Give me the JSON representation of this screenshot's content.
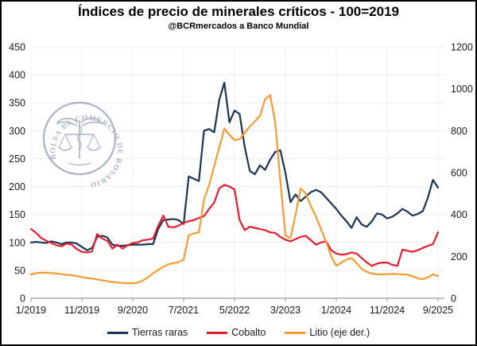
{
  "title": "Índices de precio de minerales críticos - 100=2019",
  "subtitle": "@BCRmercados a Banco Mundial",
  "watermark": {
    "text": "BOLSA DE COMERCIO DE ROSARIO",
    "color": "#94a0b8"
  },
  "chart_data": {
    "type": "line",
    "title": "Índices de precio de minerales críticos - 100=2019",
    "subtitle": "@BCRmercados a Banco Mundial",
    "x_unit": "month",
    "x_range": [
      "1/2019",
      "9/2025"
    ],
    "x_tick_labels": [
      "1/2019",
      "11/2019",
      "9/2020",
      "7/2021",
      "5/2022",
      "3/2023",
      "1/2024",
      "11/2024",
      "9/2025"
    ],
    "x_tick_month_index": [
      0,
      10,
      20,
      30,
      40,
      50,
      60,
      70,
      80
    ],
    "left_axis": {
      "min": 0,
      "max": 450,
      "step": 50,
      "tick_labels": [
        "0",
        "50",
        "100",
        "150",
        "200",
        "250",
        "300",
        "350",
        "400",
        "450"
      ]
    },
    "right_axis": {
      "min": 0,
      "max": 1200,
      "step": 200,
      "tick_labels": [
        "0",
        "200",
        "400",
        "600",
        "800",
        "1000",
        "1200"
      ]
    },
    "grid": true,
    "legend_position": "bottom",
    "series": [
      {
        "name": "Tierras raras",
        "axis": "left",
        "color": "#1b3357",
        "values": [
          100,
          101,
          100,
          99,
          102,
          100,
          97,
          100,
          100,
          98,
          92,
          86,
          90,
          110,
          112,
          109,
          96,
          94,
          94,
          95,
          96,
          96,
          96,
          97,
          97,
          124,
          140,
          141,
          142,
          140,
          133,
          218,
          214,
          210,
          300,
          303,
          297,
          355,
          386,
          315,
          336,
          330,
          271,
          228,
          222,
          238,
          230,
          248,
          262,
          265,
          225,
          172,
          186,
          174,
          182,
          190,
          194,
          190,
          180,
          170,
          160,
          148,
          138,
          126,
          145,
          132,
          128,
          138,
          152,
          150,
          143,
          146,
          152,
          160,
          155,
          148,
          151,
          156,
          180,
          212,
          198
        ]
      },
      {
        "name": "Cobalto",
        "axis": "left",
        "color": "#e51d2c",
        "values": [
          124,
          117,
          108,
          103,
          99,
          95,
          93,
          98,
          96,
          88,
          83,
          82,
          84,
          115,
          107,
          103,
          89,
          96,
          89,
          95,
          99,
          100,
          104,
          105,
          107,
          130,
          148,
          128,
          127,
          130,
          135,
          138,
          140,
          144,
          147,
          160,
          171,
          197,
          203,
          200,
          195,
          140,
          122,
          128,
          126,
          124,
          122,
          118,
          117,
          110,
          105,
          102,
          106,
          110,
          112,
          104,
          96,
          100,
          102,
          86,
          80,
          78,
          79,
          82,
          80,
          72,
          64,
          58,
          62,
          64,
          64,
          60,
          58,
          87,
          85,
          83,
          86,
          90,
          94,
          97,
          118
        ]
      },
      {
        "name": "Litio (eje der.)",
        "axis": "right",
        "color": "#f79b31",
        "values": [
          114,
          120,
          122,
          122,
          120,
          118,
          115,
          112,
          110,
          106,
          101,
          97,
          94,
          90,
          86,
          82,
          78,
          75,
          73,
          72,
          72,
          75,
          85,
          100,
          120,
          135,
          150,
          162,
          168,
          172,
          185,
          300,
          310,
          315,
          470,
          540,
          630,
          720,
          810,
          780,
          755,
          760,
          790,
          820,
          845,
          870,
          950,
          970,
          840,
          560,
          300,
          287,
          400,
          525,
          500,
          440,
          390,
          330,
          270,
          200,
          155,
          170,
          185,
          192,
          168,
          140,
          126,
          118,
          115,
          114,
          115,
          116,
          115,
          114,
          113,
          105,
          95,
          91,
          100,
          114,
          106
        ]
      }
    ]
  }
}
